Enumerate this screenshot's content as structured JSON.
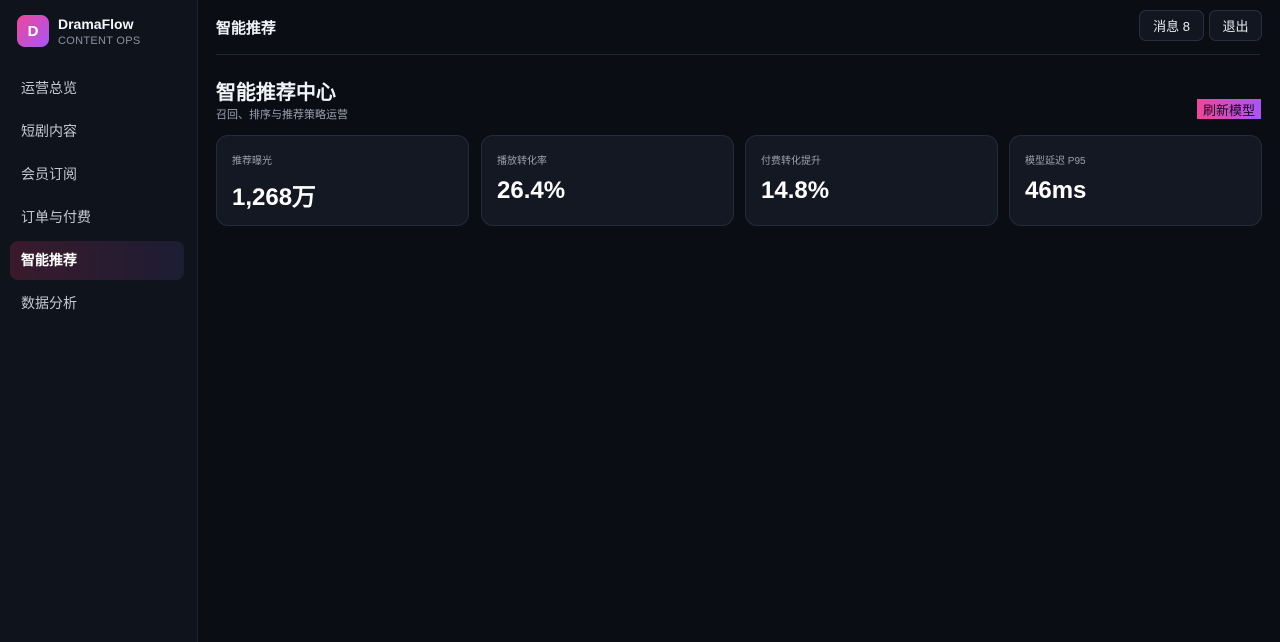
{
  "sidebar": {
    "logo": "D",
    "brand": "DramaFlow",
    "subtitle": "CONTENT OPS",
    "nav": [
      "运营总览",
      "短剧内容",
      "会员订阅",
      "订单与付费",
      "智能推荐",
      "数据分析"
    ]
  },
  "topbar": {
    "title": "智能推荐",
    "buttons": [
      "消息 8",
      "退出"
    ]
  },
  "main": {
    "title": "智能推荐中心",
    "subtitle": "召回、排序与推荐策略运营",
    "action": "刷新模型",
    "cards": [
      {
        "label": "推荐曝光",
        "value": "1,268万"
      },
      {
        "label": "播放转化率",
        "value": "26.4%"
      },
      {
        "label": "付费转化提升",
        "value": "14.8%"
      },
      {
        "label": "模型延迟 P95",
        "value": "46ms"
      }
    ]
  }
}
